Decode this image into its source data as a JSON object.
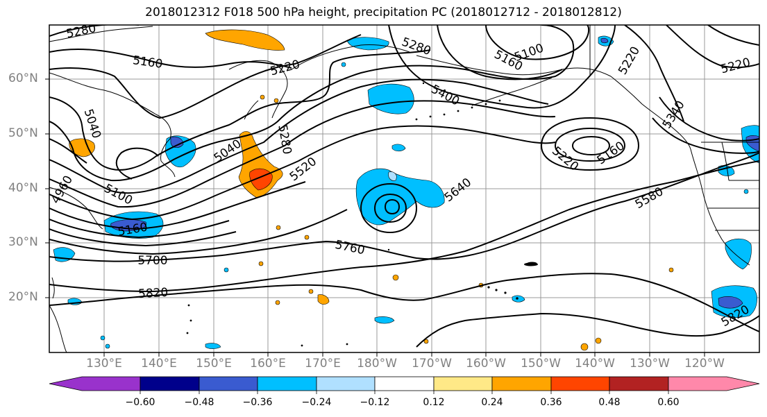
{
  "title": "2018012312 F018 500 hPa height, precipitation PC (2018012712 - 2018012812)",
  "lat_labels": [
    "60°N",
    "50°N",
    "40°N",
    "30°N",
    "20°N"
  ],
  "lon_labels": [
    "130°E",
    "140°E",
    "150°E",
    "160°E",
    "170°E",
    "180°W",
    "170°W",
    "160°W",
    "150°W",
    "140°W",
    "130°W",
    "120°W"
  ],
  "contour_labels": [
    "5280",
    "5160",
    "5220",
    "5280",
    "5100",
    "5160",
    "5220",
    "5220",
    "5040",
    "5400",
    "5340",
    "5280",
    "5040",
    "5520",
    "5100",
    "5160",
    "5220",
    "5160",
    "4960",
    "5640",
    "5580",
    "5760",
    "5700",
    "5820",
    "5820"
  ],
  "colorbar": {
    "ticks": [
      "−0.60",
      "−0.48",
      "−0.36",
      "−0.24",
      "−0.12",
      "0.12",
      "0.24",
      "0.36",
      "0.48",
      "0.60"
    ],
    "colors": [
      "#9932cc",
      "#00008b",
      "#3a5bd0",
      "#00bfff",
      "#b0e0ff",
      "#ffffff",
      "#ffe987",
      "#ffa500",
      "#ff4500",
      "#b22222",
      "#ff88aa"
    ]
  }
}
